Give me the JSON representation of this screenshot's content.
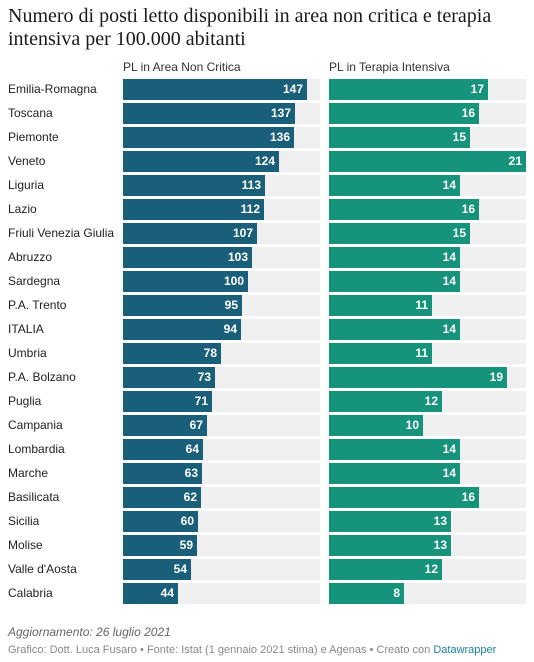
{
  "title": "Numero di posti letto disponibili in area non critica e terapia intensiva per 100.000 abitanti",
  "colors": {
    "area_non_critica": "#1a5f7a",
    "terapia_intensiva": "#16937b",
    "track": "#efefef"
  },
  "chart_data": {
    "type": "bar",
    "orientation": "horizontal",
    "title": "Numero di posti letto disponibili in area non critica e terapia intensiva per 100.000 abitanti",
    "categories": [
      "Emilia-Romagna",
      "Toscana",
      "Piemonte",
      "Veneto",
      "Liguria",
      "Lazio",
      "Friuli Venezia Giulia",
      "Abruzzo",
      "Sardegna",
      "P.A. Trento",
      "ITALIA",
      "Umbria",
      "P.A. Bolzano",
      "Puglia",
      "Campania",
      "Lombardia",
      "Marche",
      "Basilicata",
      "Sicilia",
      "Molise",
      "Valle d'Aosta",
      "Calabria"
    ],
    "series": [
      {
        "name": "PL in Area Non Critica",
        "values": [
          147,
          137,
          136,
          124,
          113,
          112,
          107,
          103,
          100,
          95,
          94,
          78,
          73,
          71,
          67,
          64,
          63,
          62,
          60,
          59,
          54,
          44
        ],
        "xlim": [
          0,
          157
        ]
      },
      {
        "name": "PL in Terapia Intensiva",
        "values": [
          17,
          16,
          15,
          21,
          14,
          16,
          15,
          14,
          14,
          11,
          14,
          11,
          19,
          12,
          10,
          14,
          14,
          16,
          13,
          13,
          12,
          8
        ],
        "xlim": [
          0,
          21
        ]
      }
    ]
  },
  "note": "Aggiornamento: 26 luglio 2021",
  "footer": {
    "text": "Grafico: Dott. Luca Fusaro • Fonte: Istat (1 gennaio 2021 stima) e Agenas • Creato con ",
    "link": "Datawrapper"
  }
}
